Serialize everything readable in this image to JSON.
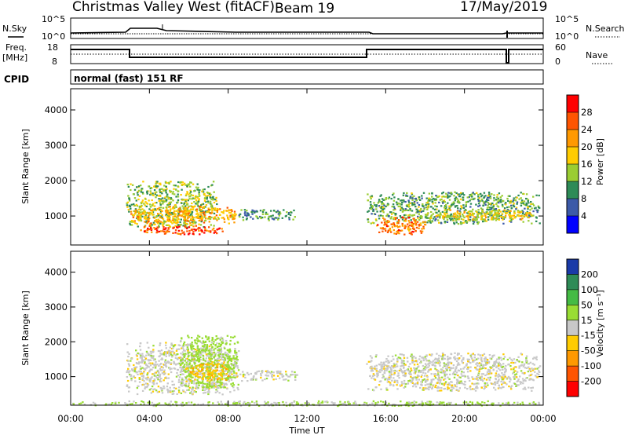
{
  "header": {
    "station": "Christmas Valley West (fitACF)",
    "beam": "Beam 19",
    "date": "17/May/2019"
  },
  "noise_panel": {
    "left_label": "N.Sky",
    "right_label": "N.Search",
    "left_ticks": [
      "10^5",
      "10^0"
    ],
    "right_ticks": [
      "10^5",
      "10^0"
    ]
  },
  "freq_panel": {
    "left_label_line1": "Freq.",
    "left_label_line2": "[MHz]",
    "right_label": "Nave",
    "left_ticks": [
      "18",
      "8"
    ],
    "right_ticks": [
      "60",
      "0"
    ]
  },
  "cpid": {
    "label": "CPID",
    "value": "normal (fast) 151 RF"
  },
  "power_colorbar": {
    "title": "Power [dB]",
    "ticks": [
      "28",
      "24",
      "20",
      "16",
      "12",
      "8",
      "4"
    ],
    "colors": [
      "#ff0000",
      "#ff5500",
      "#ff9900",
      "#ffcc00",
      "#9acd32",
      "#2e8b57",
      "#3c5aa8",
      "#0000ff"
    ]
  },
  "velocity_colorbar": {
    "title": "Velocity [m s⁻¹]",
    "ticks": [
      "200",
      "100",
      "50",
      "15",
      "-15",
      "-50",
      "-100",
      "-200"
    ],
    "colors": [
      "#1a3aa8",
      "#2e8b57",
      "#44bb44",
      "#99dd33",
      "#c8c8c8",
      "#ffcc00",
      "#ff9900",
      "#ff5500",
      "#ff0000"
    ]
  },
  "chart_data": {
    "type": "heatmap",
    "xlabel": "Time UT",
    "ylabel": "Slant Range [km]",
    "x_ticks": [
      "00:00",
      "04:00",
      "08:00",
      "12:00",
      "16:00",
      "20:00",
      "00:00"
    ],
    "x_tick_hours": [
      0,
      4,
      8,
      12,
      16,
      20,
      24
    ],
    "xlim_hours": [
      0,
      24
    ],
    "ylim_km": [
      180,
      4600
    ],
    "y_ticks": [
      1000,
      2000,
      3000,
      4000
    ],
    "freq_mhz_segments": [
      {
        "start_h": 0,
        "end_h": 3,
        "value": 16
      },
      {
        "start_h": 3,
        "end_h": 15,
        "value": 10
      },
      {
        "start_h": 15,
        "end_h": 24,
        "value": 16
      }
    ],
    "power_echo_regions": [
      {
        "t0": 2.8,
        "t1": 7.4,
        "r0": 700,
        "r1": 2000,
        "dB": 14
      },
      {
        "t0": 3.0,
        "t1": 8.5,
        "r0": 800,
        "r1": 1300,
        "dB": 20
      },
      {
        "t0": 3.5,
        "t1": 7.8,
        "r0": 500,
        "r1": 750,
        "dB": 27
      },
      {
        "t0": 8.5,
        "t1": 11.5,
        "r0": 900,
        "r1": 1200,
        "dB": 10
      },
      {
        "t0": 15.0,
        "t1": 23.8,
        "r0": 800,
        "r1": 1700,
        "dB": 12
      },
      {
        "t0": 15.5,
        "t1": 18.0,
        "r0": 500,
        "r1": 1000,
        "dB": 24
      },
      {
        "t0": 18.5,
        "t1": 23.5,
        "r0": 900,
        "r1": 1200,
        "dB": 18
      }
    ],
    "velocity_echo_regions": [
      {
        "t0": 2.8,
        "t1": 8.5,
        "r0": 500,
        "r1": 2000,
        "v": 0
      },
      {
        "t0": 5.5,
        "t1": 8.5,
        "r0": 700,
        "r1": 2200,
        "v": 30
      },
      {
        "t0": 6.0,
        "t1": 8.0,
        "r0": 900,
        "r1": 1400,
        "v": -40
      },
      {
        "t0": 8.5,
        "t1": 11.5,
        "r0": 900,
        "r1": 1200,
        "v": 0
      },
      {
        "t0": 15.0,
        "t1": 23.8,
        "r0": 600,
        "r1": 1700,
        "v": 0
      },
      {
        "t0": 0.0,
        "t1": 24.0,
        "r0": 180,
        "r1": 320,
        "v": 20
      }
    ]
  }
}
